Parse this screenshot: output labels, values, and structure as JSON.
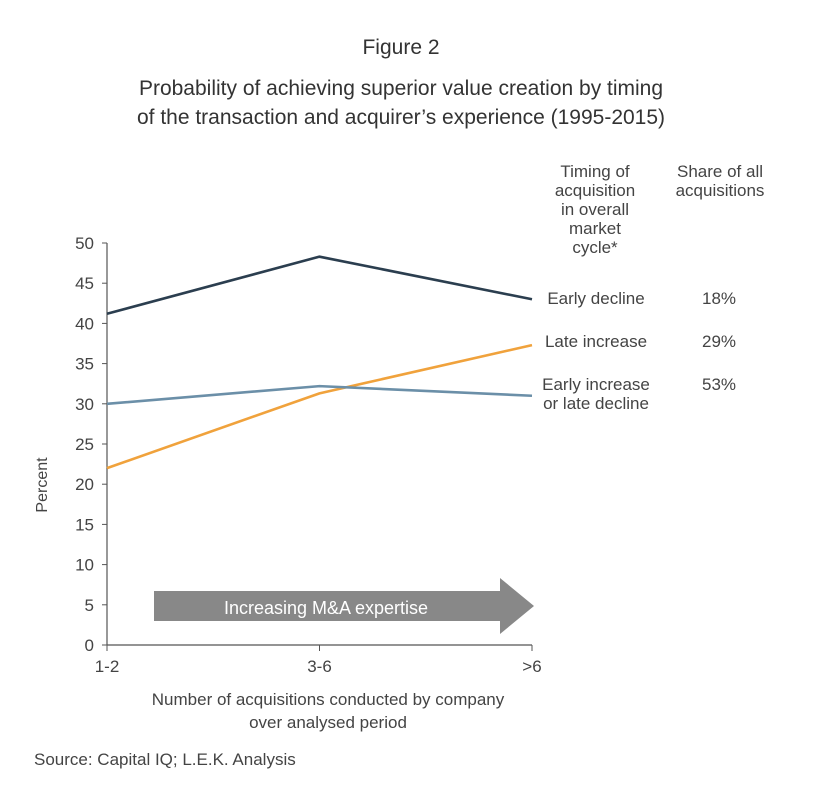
{
  "figure_label": "Figure 2",
  "title_line1": "Probability of achieving superior value creation by timing",
  "title_line2": "of the transaction and acquirer’s experience (1995-2015)",
  "table_headers": {
    "timing": [
      "Timing of",
      "acquisition",
      "in overall",
      "market",
      "cycle*"
    ],
    "share": [
      "Share of all",
      "acquisitions"
    ]
  },
  "arrow_label": "Increasing M&A expertise",
  "source": "Source: Capital IQ; L.E.K. Analysis",
  "colors": {
    "early_decline": "#2b3e4f",
    "late_increase": "#f0a23c",
    "early_increase_or_late_decline": "#6b8fa8",
    "arrow": "#888888",
    "axis": "#555555"
  },
  "chart_data": {
    "type": "line",
    "title": "Probability of achieving superior value creation by timing of the transaction and acquirer’s experience (1995-2015)",
    "x": [
      "1-2",
      "3-6",
      ">6"
    ],
    "xlabel": [
      "Number of acquisitions conducted by company",
      "over analysed period"
    ],
    "ylabel": "Percent",
    "ylim": [
      0,
      50
    ],
    "yticks": [
      0,
      5,
      10,
      15,
      20,
      25,
      30,
      35,
      40,
      45,
      50
    ],
    "grid": false,
    "series": [
      {
        "name": "Early decline",
        "share": "18%",
        "values": [
          41.2,
          48.3,
          43.0
        ],
        "color_key": "early_decline"
      },
      {
        "name": "Late increase",
        "share": "29%",
        "values": [
          22.0,
          31.3,
          37.3
        ],
        "color_key": "late_increase"
      },
      {
        "name_lines": [
          "Early increase",
          "or late decline"
        ],
        "share": "53%",
        "values": [
          30.0,
          32.2,
          31.0
        ],
        "color_key": "early_increase_or_late_decline"
      }
    ]
  }
}
